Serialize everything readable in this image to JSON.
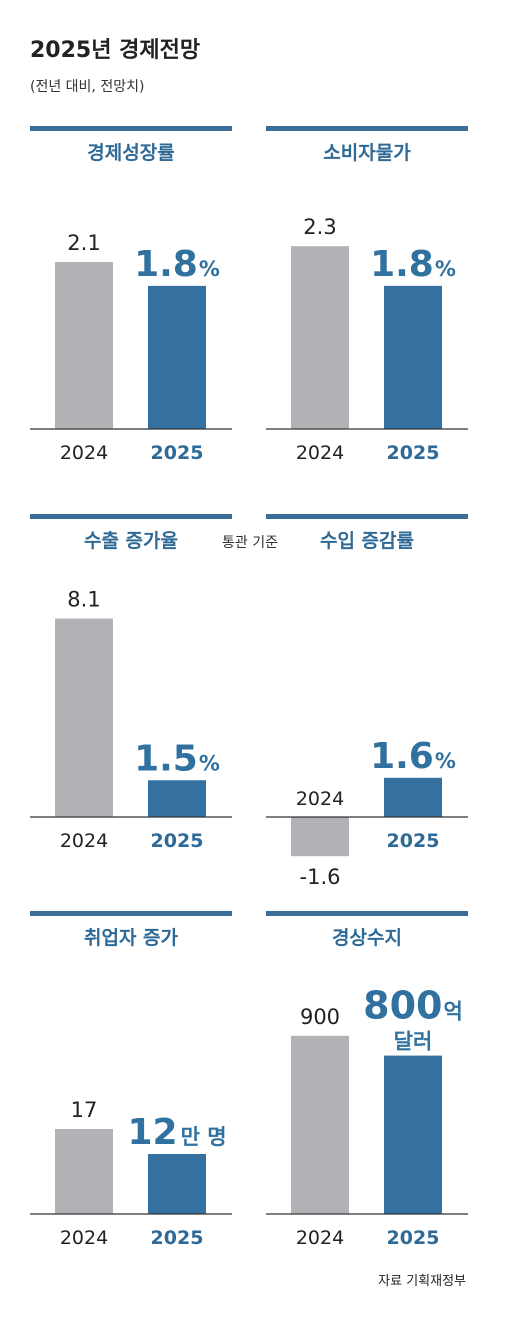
{
  "header": {
    "title": "2025년 경제전망",
    "subtitle": "(전년 대비, 전망치)"
  },
  "source": "자료 기획재정부",
  "colors": {
    "bar_2024": "#b2b2b6",
    "bar_2025": "#3471a0",
    "accent": "#3a6e98",
    "axis": "#333333"
  },
  "chart_data": [
    {
      "type": "bar",
      "title": "경제성장률",
      "categories": [
        "2024",
        "2025"
      ],
      "values": [
        2.1,
        1.8
      ],
      "labels": [
        "2.1",
        "1.8"
      ],
      "unit": "%",
      "ylim": [
        0,
        3.5
      ]
    },
    {
      "type": "bar",
      "title": "소비자물가",
      "categories": [
        "2024",
        "2025"
      ],
      "values": [
        2.3,
        1.8
      ],
      "labels": [
        "2.3",
        "1.8"
      ],
      "unit": "%",
      "ylim": [
        0,
        3.5
      ]
    },
    {
      "type": "bar",
      "title": "수출 증가율",
      "note": "통관 기준",
      "categories": [
        "2024",
        "2025"
      ],
      "values": [
        8.1,
        1.5
      ],
      "labels": [
        "8.1",
        "1.5"
      ],
      "unit": "%",
      "ylim": [
        0,
        10.5
      ]
    },
    {
      "type": "bar",
      "title": "수입 증감률",
      "categories": [
        "2024",
        "2025"
      ],
      "values": [
        -1.6,
        1.6
      ],
      "labels": [
        "-1.6",
        "1.6"
      ],
      "unit": "%",
      "ylim": [
        -4,
        10.5
      ]
    },
    {
      "type": "bar",
      "title": "취업자 증가",
      "categories": [
        "2024",
        "2025"
      ],
      "values": [
        17,
        12
      ],
      "labels": [
        "17",
        "12"
      ],
      "unit": "만 명",
      "ylim": [
        0,
        30
      ]
    },
    {
      "type": "bar",
      "title": "경상수지",
      "categories": [
        "2024",
        "2025"
      ],
      "values": [
        900,
        800
      ],
      "labels": [
        "900",
        "800"
      ],
      "unit": "억",
      "unit2": "달러",
      "ylim": [
        0,
        1550
      ]
    }
  ]
}
